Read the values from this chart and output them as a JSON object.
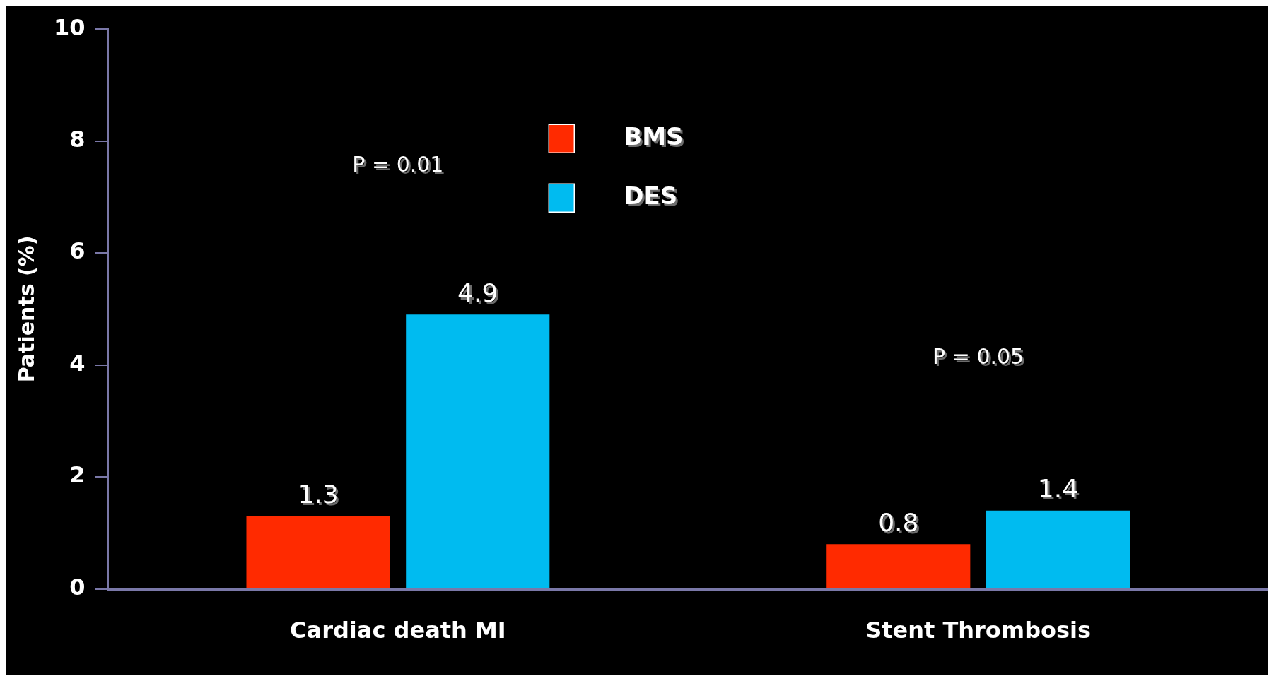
{
  "chart_data": {
    "type": "bar",
    "ylabel": "Patients (%)",
    "categories": [
      "Cardiac death MI",
      "Stent Thrombosis"
    ],
    "series": [
      {
        "name": "BMS",
        "color": "#ff2a00",
        "values": [
          1.3,
          0.8
        ]
      },
      {
        "name": "DES",
        "color": "#00bbf0",
        "values": [
          4.9,
          1.4
        ]
      }
    ],
    "ylim": [
      0,
      10
    ],
    "yticks": [
      0,
      2,
      4,
      6,
      8,
      10
    ],
    "grid": false,
    "legend": "top",
    "data_labels": true,
    "annotations": [
      "P = 0.01",
      "P = 0.05"
    ]
  }
}
